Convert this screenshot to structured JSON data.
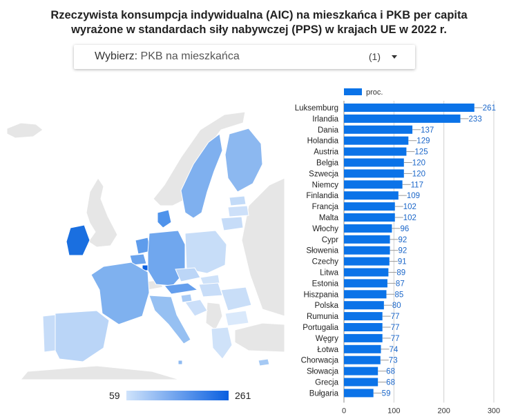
{
  "title": {
    "line1": "Rzeczywista konsumpcja indywidualna (AIC) na mieszkańca i PKB per capita",
    "line2": "wyrażone w standardach siły nabywczej (PPS) w krajach UE w 2022 r."
  },
  "selector": {
    "label": "Wybierz:",
    "value": "PKB na mieszkańca",
    "count": "(1)",
    "icon": "dropdown-arrow-icon"
  },
  "map_scale": {
    "min": "59",
    "max": "261"
  },
  "colors": {
    "bar": "#0b73e8",
    "scale_low": "#cfe3fb",
    "scale_high": "#0a5fe0",
    "land_other": "#e6e6e6",
    "grid": "#d0d0d0"
  },
  "chart_data": {
    "type": "bar",
    "orientation": "horizontal",
    "legend": {
      "entries": [
        "proc."
      ],
      "placement": "top-left"
    },
    "categories": [
      "Luksemburg",
      "Irlandia",
      "Dania",
      "Holandia",
      "Austria",
      "Belgia",
      "Szwecja",
      "Niemcy",
      "Finlandia",
      "Francja",
      "Malta",
      "Włochy",
      "Cypr",
      "Słowenia",
      "Czechy",
      "Litwa",
      "Estonia",
      "Hiszpania",
      "Polska",
      "Rumunia",
      "Portugalia",
      "Węgry",
      "Łotwa",
      "Chorwacja",
      "Słowacja",
      "Grecja",
      "Bułgaria"
    ],
    "series": [
      {
        "name": "proc.",
        "values": [
          261,
          233,
          137,
          129,
          125,
          120,
          120,
          117,
          109,
          102,
          102,
          96,
          92,
          92,
          91,
          89,
          87,
          85,
          80,
          77,
          77,
          77,
          74,
          73,
          68,
          68,
          59
        ]
      }
    ],
    "xlim": [
      0,
      300
    ],
    "xticks": [
      "0",
      "100",
      "200",
      "300"
    ],
    "grid": true
  }
}
